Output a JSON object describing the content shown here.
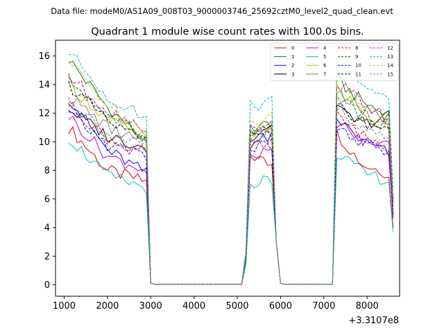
{
  "chart_data": {
    "type": "line",
    "suptitle": "Data file: modeM0/AS1A09_008T03_9000003746_25692cztM0_level2_quad_clean.evt",
    "title": "Quadrant 1 module wise count rates with 100.0s bins.",
    "xlabel": "",
    "ylabel": "",
    "offset_label": "+3.3107e8",
    "xlim": [
      800,
      8750
    ],
    "ylim": [
      -0.8,
      17.1
    ],
    "xticks": [
      1000,
      2000,
      3000,
      4000,
      5000,
      6000,
      7000,
      8000
    ],
    "yticks": [
      0,
      2,
      4,
      6,
      8,
      10,
      12,
      14,
      16
    ],
    "legend_position": "top-right",
    "segments": [
      {
        "start": 1100,
        "end": 2900
      },
      {
        "start": 5200,
        "end": 5800
      },
      {
        "start": 7300,
        "end": 8500
      }
    ],
    "series": [
      {
        "name": "0",
        "color": "#e00000",
        "dash": "solid",
        "seg": [
          [
            11.0,
            8.0,
            7.2
          ],
          [
            9.2,
            8.4
          ],
          [
            10.6,
            8.4,
            7.8
          ]
        ]
      },
      {
        "name": "1",
        "color": "#008000",
        "dash": "solid",
        "seg": [
          [
            15.8,
            12.4,
            10.0
          ],
          [
            11.0,
            11.2
          ],
          [
            14.3,
            12.8,
            11.8
          ]
        ]
      },
      {
        "name": "2",
        "color": "#0000ff",
        "dash": "solid",
        "seg": [
          [
            13.1,
            9.4,
            7.8
          ],
          [
            9.8,
            10.3
          ],
          [
            11.6,
            10.0,
            9.2
          ]
        ]
      },
      {
        "name": "3",
        "color": "#000000",
        "dash": "solid",
        "seg": [
          [
            12.3,
            10.4,
            9.6
          ],
          [
            10.2,
            11.3
          ],
          [
            12.2,
            11.2,
            11.8
          ]
        ]
      },
      {
        "name": "4",
        "color": "#c000c0",
        "dash": "solid",
        "seg": [
          [
            11.8,
            9.0,
            8.0
          ],
          [
            9.0,
            9.3
          ],
          [
            11.4,
            10.0,
            9.8
          ]
        ]
      },
      {
        "name": "5",
        "color": "#00c0c0",
        "dash": "solid",
        "seg": [
          [
            10.3,
            7.6,
            6.8
          ],
          [
            7.0,
            7.4
          ],
          [
            9.3,
            7.8,
            7.3
          ]
        ]
      },
      {
        "name": "6",
        "color": "#c0c000",
        "dash": "solid",
        "seg": [
          [
            14.0,
            11.6,
            10.2
          ],
          [
            10.4,
            11.0
          ],
          [
            13.8,
            12.0,
            11.0
          ]
        ]
      },
      {
        "name": "7",
        "color": "#808080",
        "dash": "solid",
        "seg": [
          [
            13.2,
            11.0,
            9.8
          ],
          [
            10.6,
            11.4
          ],
          [
            13.6,
            12.2,
            11.4
          ]
        ]
      },
      {
        "name": "8",
        "color": "#e00000",
        "dash": "dashed",
        "seg": [
          [
            12.6,
            10.2,
            9.2
          ],
          [
            9.6,
            10.0
          ],
          [
            11.8,
            10.4,
            9.6
          ]
        ]
      },
      {
        "name": "9",
        "color": "#008000",
        "dash": "dashed",
        "seg": [
          [
            14.4,
            11.8,
            10.4
          ],
          [
            10.4,
            10.8
          ],
          [
            13.4,
            11.8,
            11.2
          ]
        ]
      },
      {
        "name": "10",
        "color": "#0000ff",
        "dash": "dashed",
        "seg": [
          [
            12.0,
            9.8,
            9.0
          ],
          [
            9.4,
            9.8
          ],
          [
            11.0,
            9.8,
            9.2
          ]
        ]
      },
      {
        "name": "11",
        "color": "#000000",
        "dash": "dashed",
        "seg": [
          [
            14.0,
            11.4,
            10.0
          ],
          [
            10.0,
            10.5
          ],
          [
            12.4,
            11.4,
            11.0
          ]
        ]
      },
      {
        "name": "12",
        "color": "#c000c0",
        "dash": "dashed",
        "seg": [
          [
            14.6,
            12.2,
            11.0
          ],
          [
            10.8,
            11.2
          ],
          [
            14.2,
            12.6,
            11.6
          ]
        ]
      },
      {
        "name": "13",
        "color": "#00c0c0",
        "dash": "dashed",
        "seg": [
          [
            16.3,
            13.2,
            11.6
          ],
          [
            12.4,
            12.8
          ],
          [
            15.4,
            14.2,
            12.6
          ]
        ]
      },
      {
        "name": "14",
        "color": "#c0c000",
        "dash": "dashed",
        "seg": [
          [
            15.6,
            12.6,
            10.8
          ],
          [
            11.4,
            11.8
          ],
          [
            14.6,
            12.6,
            11.6
          ]
        ]
      },
      {
        "name": "15",
        "color": "#808080",
        "dash": "dashed",
        "seg": [
          [
            13.0,
            10.6,
            9.6
          ],
          [
            10.2,
            10.6
          ],
          [
            12.4,
            11.0,
            10.2
          ]
        ]
      }
    ]
  }
}
